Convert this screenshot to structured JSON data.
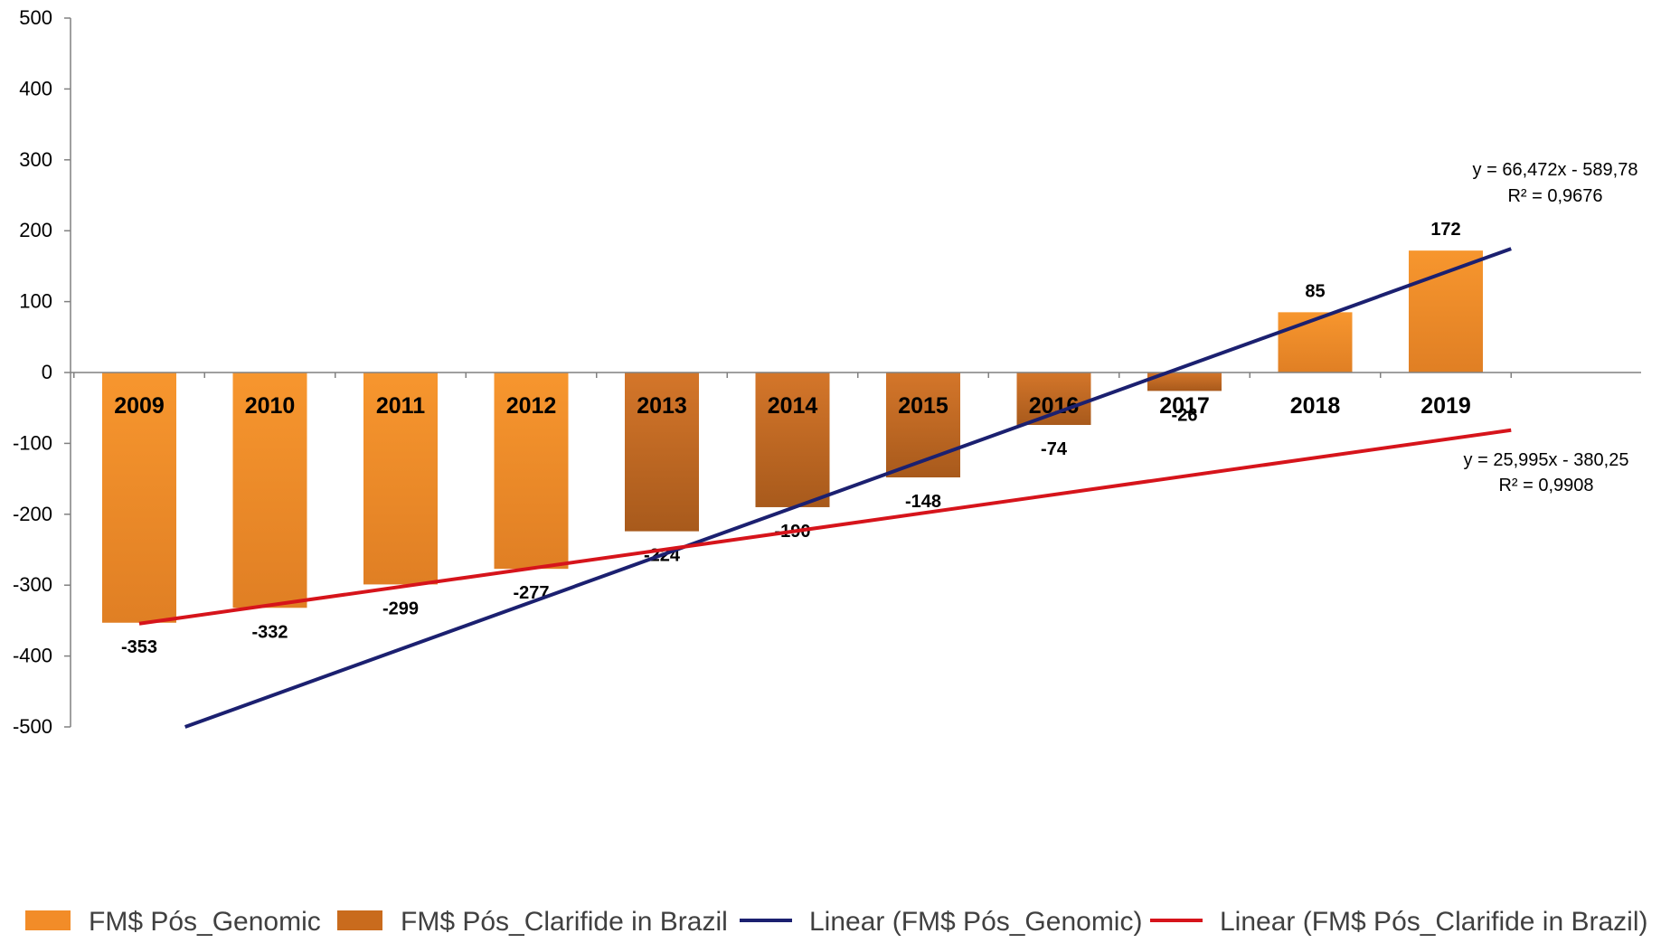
{
  "chart_data": {
    "type": "bar",
    "title": "",
    "xlabel": "",
    "ylabel": "",
    "ylim": [
      -500,
      500
    ],
    "yticks": [
      500,
      400,
      300,
      200,
      100,
      0,
      -100,
      -200,
      -300,
      -400,
      -500
    ],
    "categories": [
      "2009",
      "2010",
      "2011",
      "2012",
      "2013",
      "2014",
      "2015",
      "2016",
      "2017",
      "2018",
      "2019"
    ],
    "values": [
      -353,
      -332,
      -299,
      -277,
      -224,
      -190,
      -148,
      -74,
      -26,
      85,
      172
    ],
    "value_labels": [
      "-353",
      "-332",
      "-299",
      "-277",
      "-224",
      "-190",
      "-148",
      "-74",
      "-26",
      "85",
      "172"
    ],
    "series": [
      {
        "name": "FM$ Pós_Genomic",
        "categories": [
          "2009",
          "2010",
          "2011",
          "2012",
          "2018",
          "2019"
        ],
        "color": "#f28c28"
      },
      {
        "name": "FM$ Pós_Clarifide in Brazil",
        "categories": [
          "2013",
          "2014",
          "2015",
          "2016",
          "2017"
        ],
        "color": "#c96b1d"
      }
    ],
    "trendlines": [
      {
        "name": "Linear (FM$ Pós_Genomic)",
        "slope": 66.472,
        "intercept": -589.78,
        "equation": "y = 66,472x - 589,78",
        "r2": "R² = 0,9676",
        "color": "#1b2070"
      },
      {
        "name": "Linear (FM$ Pós_Clarifide in Brazil)",
        "slope": 25.995,
        "intercept": -380.25,
        "equation": "y = 25,995x - 380,25",
        "r2": "R² = 0,9908",
        "color": "#d6141b"
      }
    ],
    "grid": false,
    "legend_position": "bottom"
  },
  "legend": {
    "items": [
      {
        "label": "FM$ Pós_Genomic",
        "kind": "bar",
        "color": "#f28c28"
      },
      {
        "label": "FM$ Pós_Clarifide in Brazil",
        "kind": "bar",
        "color": "#c96b1d"
      },
      {
        "label": "Linear (FM$ Pós_Genomic)",
        "kind": "line",
        "color": "#1b2070"
      },
      {
        "label": "Linear (FM$ Pós_Clarifide in Brazil)",
        "kind": "line",
        "color": "#d6141b"
      }
    ]
  }
}
